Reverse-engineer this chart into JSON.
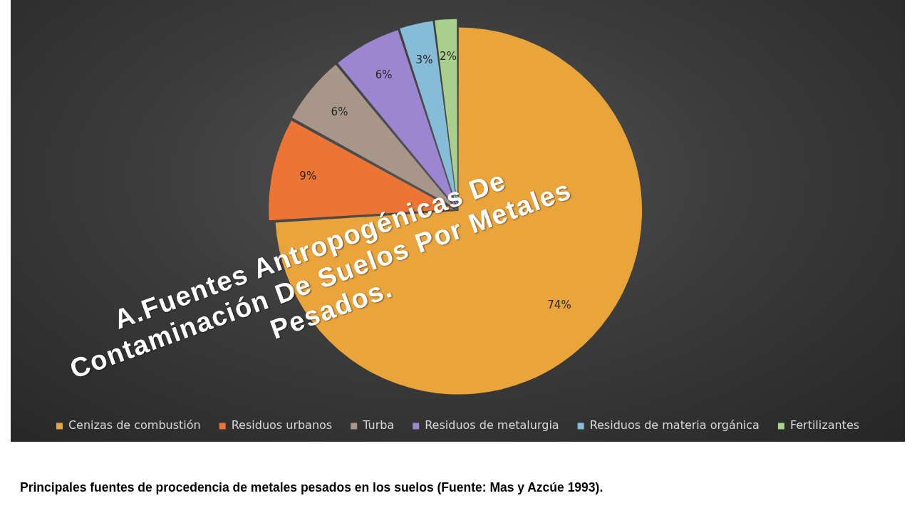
{
  "chart_data": {
    "type": "pie",
    "title": "A.Fuentes Antropogénicas De Contaminación De Suelos Por Metales Pesados.",
    "categories": [
      "Cenizas de combustión",
      "Residuos urbanos",
      "Turba",
      "Residuos de metalurgia",
      "Residuos de materia orgánica",
      "Fertilizantes"
    ],
    "values": [
      74,
      9,
      6,
      6,
      3,
      2
    ],
    "colors": [
      "#e9a43c",
      "#ec7434",
      "#a9968a",
      "#9c86d2",
      "#86bcd8",
      "#a8cf8c"
    ],
    "value_labels": [
      "74%",
      "9%",
      "6%",
      "6%",
      "3%",
      "2%"
    ],
    "legend": "bottom",
    "annotations": [
      "Principales fuentes de procedencia de metales pesados en los suelos (Fuente: Mas y Azcúe 1993)."
    ]
  }
}
